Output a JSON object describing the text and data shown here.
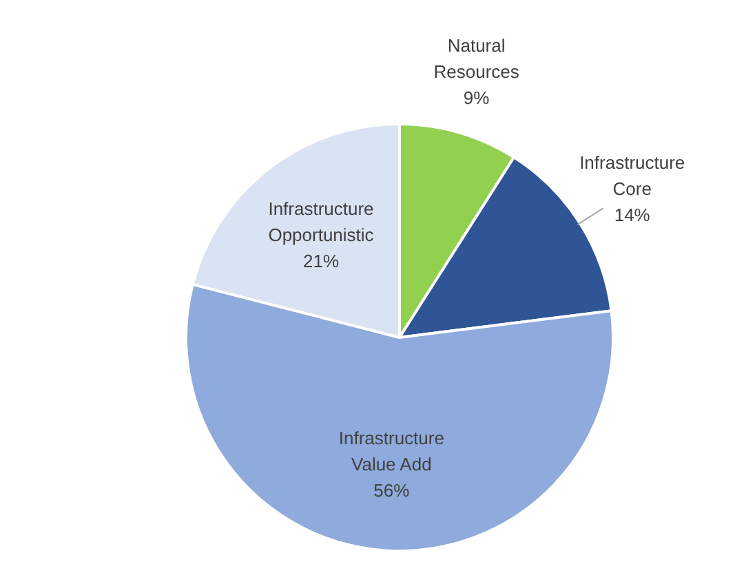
{
  "chart_data": {
    "type": "pie",
    "categories": [
      "Natural Resources",
      "Infrastructure Core",
      "Infrastructure Value Add",
      "Infrastructure Opportunistic"
    ],
    "values": [
      9,
      14,
      56,
      21
    ],
    "colors": [
      "#92d050",
      "#2f5597",
      "#8faadc",
      "#dae3f3"
    ],
    "value_labels": [
      "9%",
      "14%",
      "56%",
      "21%"
    ],
    "legend": false
  }
}
